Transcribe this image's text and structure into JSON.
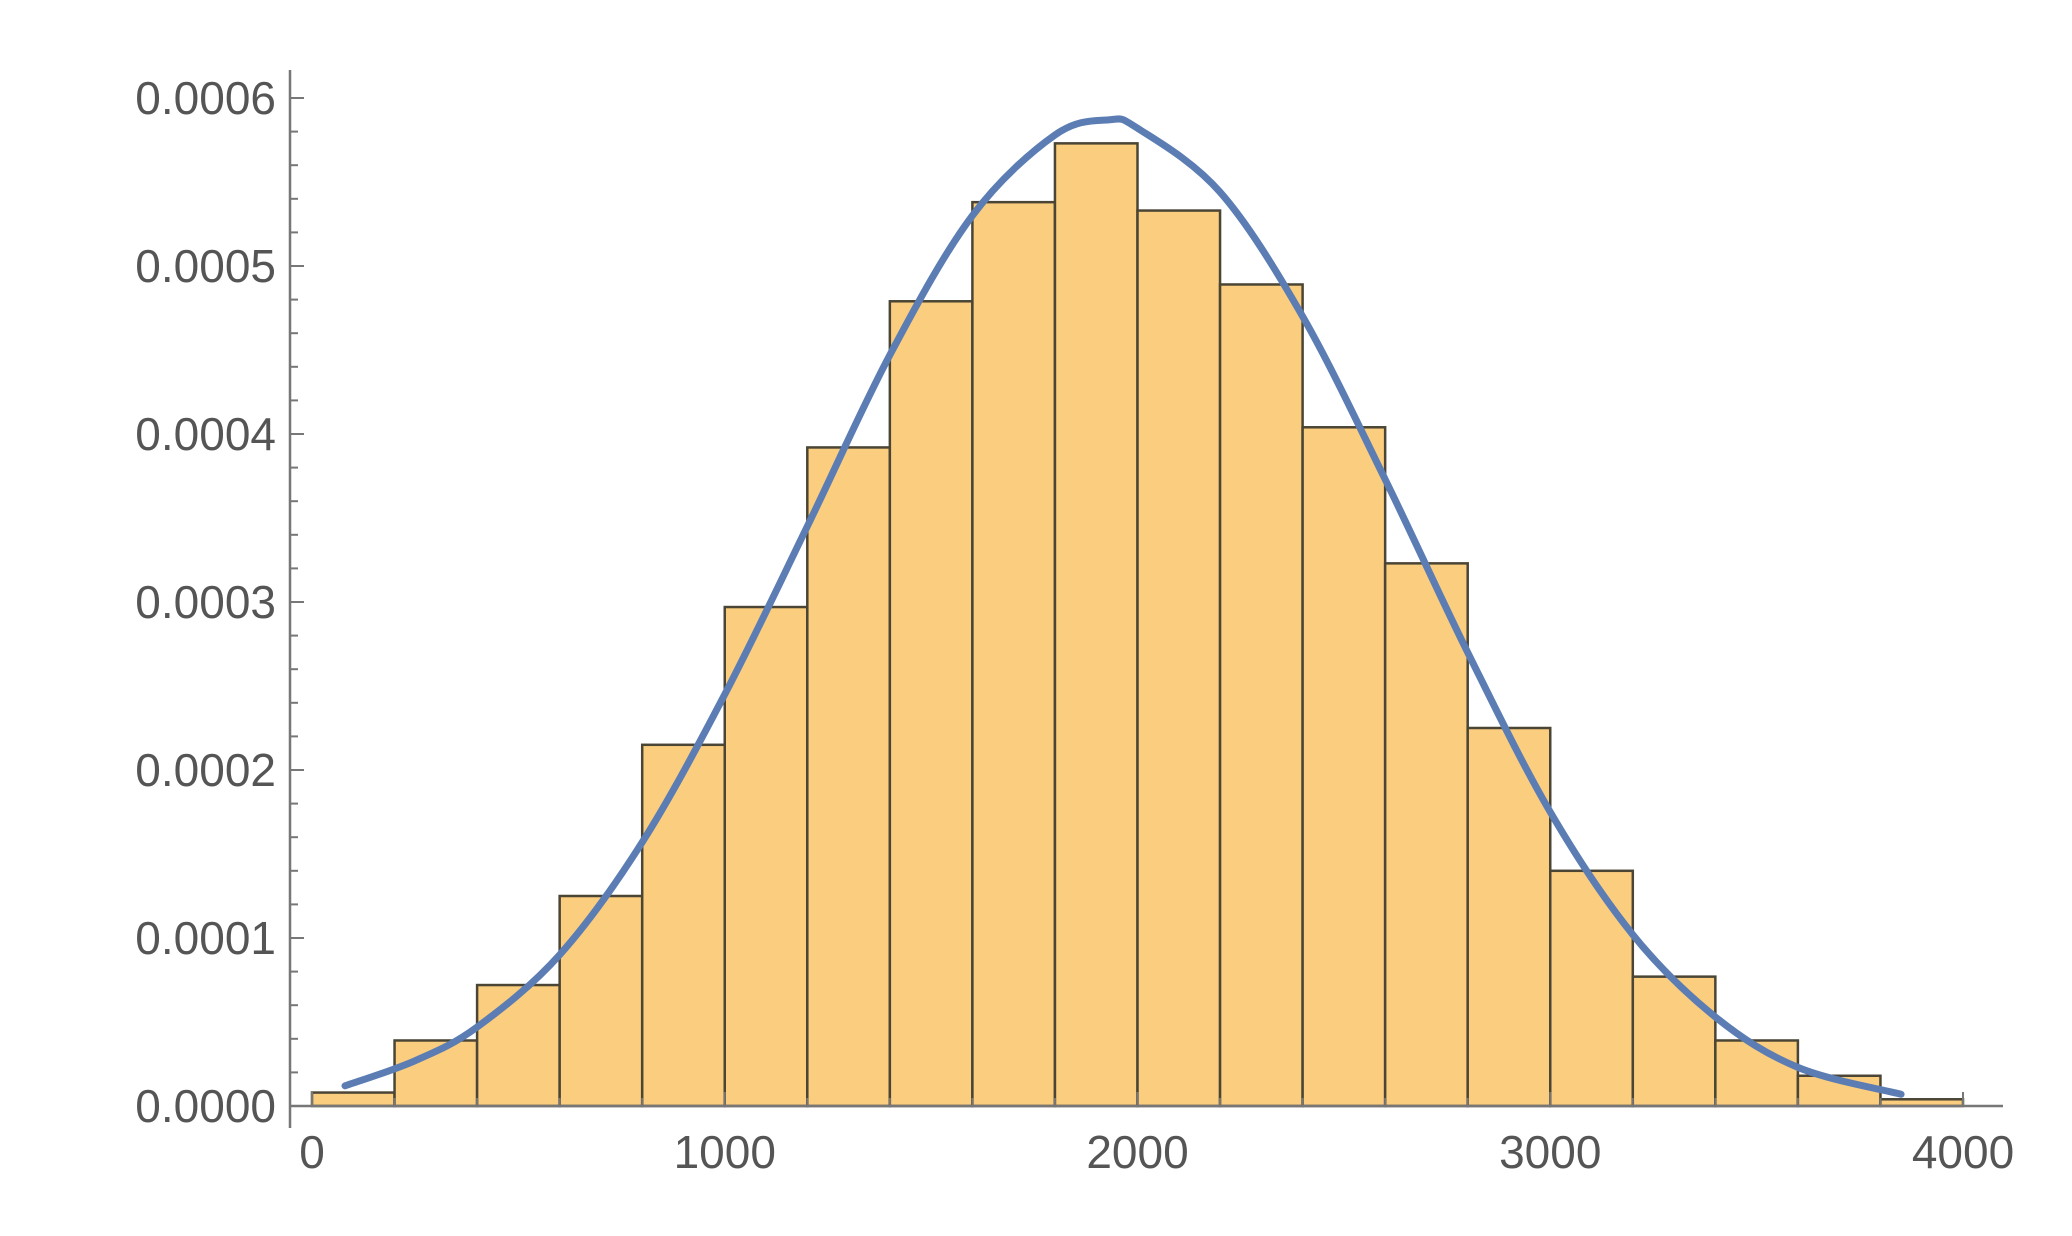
{
  "chart_data": {
    "type": "bar",
    "subtype": "histogram-with-density-curve",
    "title": "",
    "xlabel": "",
    "ylabel": "",
    "xlim": [
      0,
      4000
    ],
    "ylim": [
      0,
      0.0006
    ],
    "x_ticks": [
      {
        "value": 0,
        "label": "0"
      },
      {
        "value": 1000,
        "label": "1000"
      },
      {
        "value": 2000,
        "label": "2000"
      },
      {
        "value": 3000,
        "label": "3000"
      },
      {
        "value": 4000,
        "label": "4000"
      }
    ],
    "y_ticks": [
      {
        "value": 0,
        "label": "0.0000"
      },
      {
        "value": 0.0001,
        "label": "0.0001"
      },
      {
        "value": 0.0002,
        "label": "0.0002"
      },
      {
        "value": 0.0003,
        "label": "0.0003"
      },
      {
        "value": 0.0004,
        "label": "0.0004"
      },
      {
        "value": 0.0005,
        "label": "0.0005"
      },
      {
        "value": 0.0006,
        "label": "0.0006"
      }
    ],
    "grid": false,
    "bins": [
      {
        "x0": 0,
        "x1": 200,
        "value": 8e-06
      },
      {
        "x0": 200,
        "x1": 400,
        "value": 3.9e-05
      },
      {
        "x0": 400,
        "x1": 600,
        "value": 7.2e-05
      },
      {
        "x0": 600,
        "x1": 800,
        "value": 0.000125
      },
      {
        "x0": 800,
        "x1": 1000,
        "value": 0.000215
      },
      {
        "x0": 1000,
        "x1": 1200,
        "value": 0.000297
      },
      {
        "x0": 1200,
        "x1": 1400,
        "value": 0.000392
      },
      {
        "x0": 1400,
        "x1": 1600,
        "value": 0.000479
      },
      {
        "x0": 1600,
        "x1": 1800,
        "value": 0.000538
      },
      {
        "x0": 1800,
        "x1": 2000,
        "value": 0.000573
      },
      {
        "x0": 2000,
        "x1": 2200,
        "value": 0.000533
      },
      {
        "x0": 2200,
        "x1": 2400,
        "value": 0.000489
      },
      {
        "x0": 2400,
        "x1": 2600,
        "value": 0.000404
      },
      {
        "x0": 2600,
        "x1": 2800,
        "value": 0.000323
      },
      {
        "x0": 2800,
        "x1": 3000,
        "value": 0.000225
      },
      {
        "x0": 3000,
        "x1": 3200,
        "value": 0.00014
      },
      {
        "x0": 3200,
        "x1": 3400,
        "value": 7.7e-05
      },
      {
        "x0": 3400,
        "x1": 3600,
        "value": 3.9e-05
      },
      {
        "x0": 3600,
        "x1": 3800,
        "value": 1.8e-05
      },
      {
        "x0": 3800,
        "x1": 4000,
        "value": 4e-06
      }
    ],
    "density_curve": {
      "type": "line",
      "x": [
        80,
        250,
        400,
        600,
        800,
        1000,
        1200,
        1400,
        1600,
        1800,
        1930,
        2000,
        2200,
        2400,
        2600,
        2800,
        3000,
        3200,
        3400,
        3600,
        3850
      ],
      "y": [
        1.2e-05,
        2.7e-05,
        4.7e-05,
        9e-05,
        0.000157,
        0.000245,
        0.000345,
        0.000447,
        0.00053,
        0.000578,
        0.000587,
        0.000582,
        0.000544,
        0.00047,
        0.000373,
        0.00027,
        0.000175,
        0.000102,
        5.3e-05,
        2.3e-05,
        7e-06
      ]
    },
    "colors": {
      "bar_fill": "#fbcd7e",
      "bar_stroke": "#4a4535",
      "curve": "#5b7db3",
      "axis": "#777777",
      "tick_text": "#555555"
    }
  }
}
